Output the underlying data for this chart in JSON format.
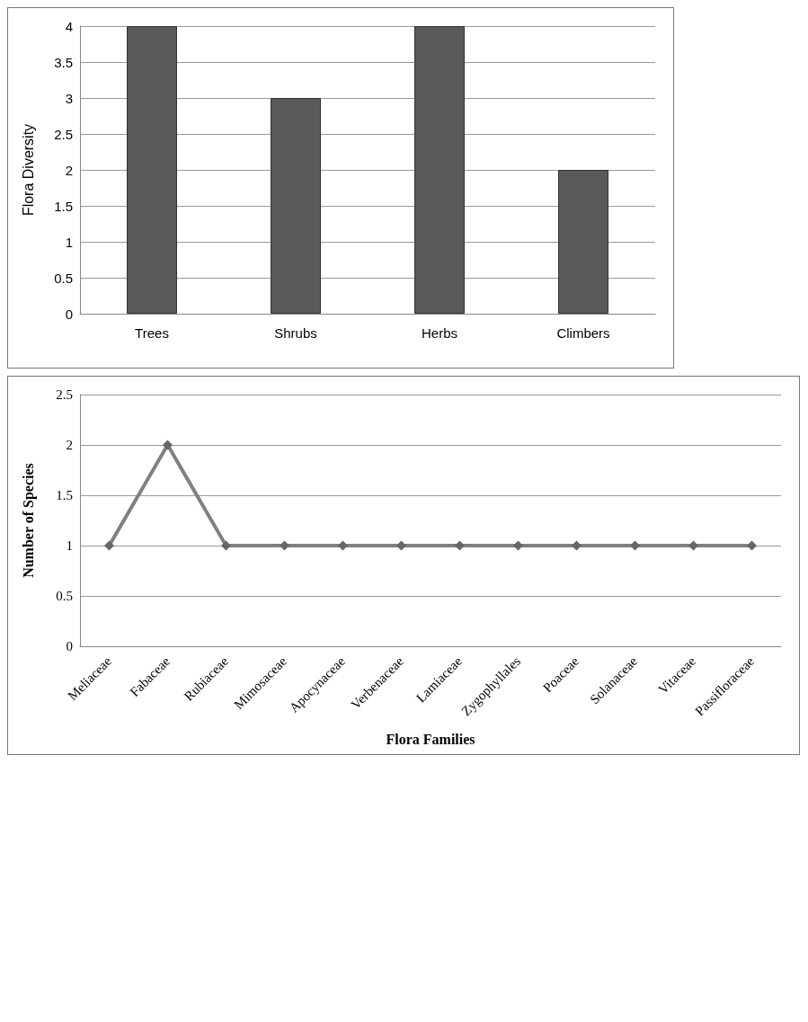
{
  "chart_data": [
    {
      "type": "bar",
      "ylabel": "Flora Diversity",
      "categories": [
        "Trees",
        "Shrubs",
        "Herbs",
        "Climbers"
      ],
      "values": [
        4,
        3,
        4,
        2
      ],
      "color": "#595959",
      "ylim": [
        0,
        4
      ],
      "yticks": [
        0,
        0.5,
        1,
        1.5,
        2,
        2.5,
        3,
        3.5,
        4
      ],
      "grid": "y"
    },
    {
      "type": "line",
      "xlabel": "Flora Families",
      "ylabel": "Number of Species",
      "categories": [
        "Meliaceae",
        "Fabaceae",
        "Rubiaceae",
        "Mimosaceae",
        "Apocynaceae",
        "Verbenaceae",
        "Lamiaceae",
        "Zygophyllales",
        "Poaceae",
        "Solanaceae",
        "Vitaceae",
        "Passifloraceae"
      ],
      "values": [
        1,
        2,
        1,
        1,
        1,
        1,
        1,
        1,
        1,
        1,
        1,
        1
      ],
      "color": "#808080",
      "marker": "diamond",
      "ylim": [
        0,
        2.5
      ],
      "yticks": [
        0,
        0.5,
        1,
        1.5,
        2,
        2.5
      ],
      "grid": "y"
    }
  ]
}
